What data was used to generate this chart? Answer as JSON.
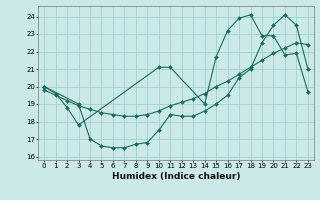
{
  "xlabel": "Humidex (Indice chaleur)",
  "xlim": [
    -0.5,
    23.5
  ],
  "ylim": [
    15.8,
    24.6
  ],
  "yticks": [
    16,
    17,
    18,
    19,
    20,
    21,
    22,
    23,
    24
  ],
  "xticks": [
    0,
    1,
    2,
    3,
    4,
    5,
    6,
    7,
    8,
    9,
    10,
    11,
    12,
    13,
    14,
    15,
    16,
    17,
    18,
    19,
    20,
    21,
    22,
    23
  ],
  "bg_color": "#cce9e9",
  "grid_color": "#99cccc",
  "line_color": "#1a6b5a",
  "line1_x": [
    0,
    1,
    2,
    3,
    10,
    11,
    14,
    15,
    16,
    17,
    18,
    19,
    20,
    21,
    22,
    23
  ],
  "line1_y": [
    20.0,
    19.6,
    18.8,
    17.8,
    21.1,
    21.1,
    19.0,
    21.7,
    23.2,
    23.9,
    24.1,
    22.9,
    22.9,
    21.8,
    21.9,
    19.7
  ],
  "line2_x": [
    0,
    3,
    4,
    5,
    6,
    7,
    8,
    9,
    10,
    11,
    12,
    13,
    14,
    15,
    16,
    17,
    18,
    19,
    20,
    21,
    22,
    23
  ],
  "line2_y": [
    20.0,
    19.0,
    17.0,
    16.6,
    16.5,
    16.5,
    16.7,
    16.8,
    17.5,
    18.4,
    18.3,
    18.3,
    18.6,
    19.0,
    19.5,
    20.5,
    21.0,
    22.5,
    23.5,
    24.1,
    23.5,
    21.0
  ],
  "line3_x": [
    0,
    1,
    2,
    3,
    4,
    5,
    6,
    7,
    8,
    9,
    10,
    11,
    12,
    13,
    14,
    15,
    16,
    17,
    18,
    19,
    20,
    21,
    22,
    23
  ],
  "line3_y": [
    19.8,
    19.5,
    19.2,
    18.9,
    18.7,
    18.5,
    18.4,
    18.3,
    18.3,
    18.4,
    18.6,
    18.9,
    19.1,
    19.3,
    19.6,
    20.0,
    20.3,
    20.7,
    21.1,
    21.5,
    21.9,
    22.2,
    22.5,
    22.4
  ],
  "marker_size": 2.0,
  "line_width": 0.8
}
